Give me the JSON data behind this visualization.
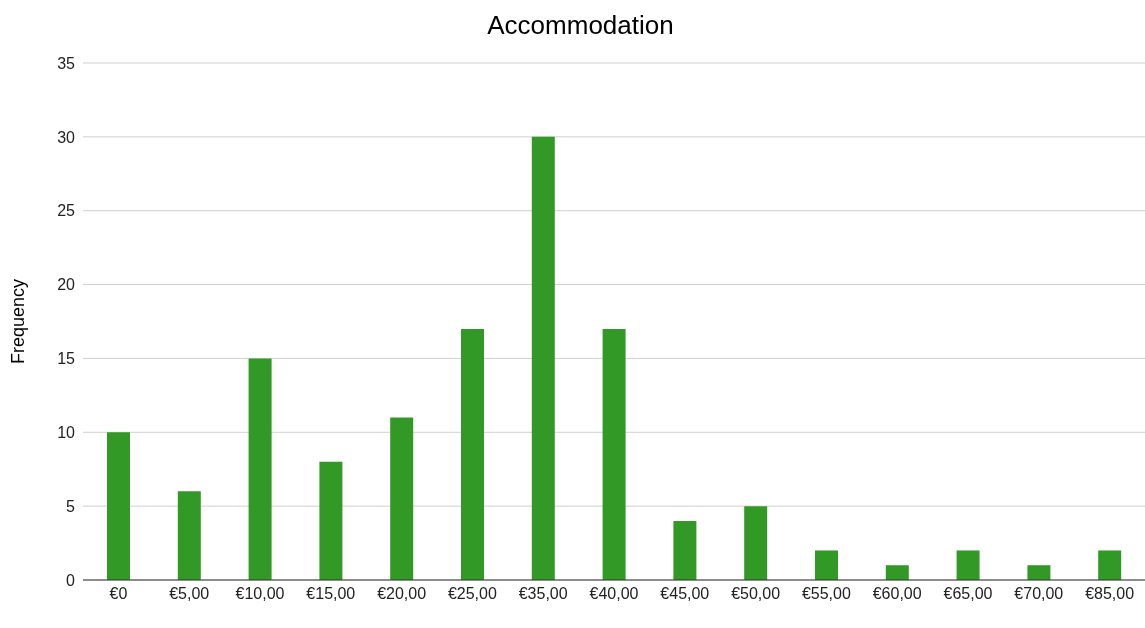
{
  "chart_data": {
    "type": "bar",
    "title": "Accommodation",
    "ylabel": "Frequency",
    "categories": [
      "€0",
      "€5,00",
      "€10,00",
      "€15,00",
      "€20,00",
      "€25,00",
      "€35,00",
      "€40,00",
      "€45,00",
      "€50,00",
      "€55,00",
      "€60,00",
      "€65,00",
      "€70,00",
      "€85,00"
    ],
    "values": [
      10,
      6,
      15,
      8,
      11,
      17,
      30,
      17,
      4,
      5,
      2,
      1,
      2,
      1,
      2
    ],
    "color": "#339926",
    "ylim": [
      0,
      35
    ],
    "yticks": [
      0,
      5,
      10,
      15,
      20,
      25,
      30,
      35
    ],
    "grid": "y",
    "legend": false
  }
}
